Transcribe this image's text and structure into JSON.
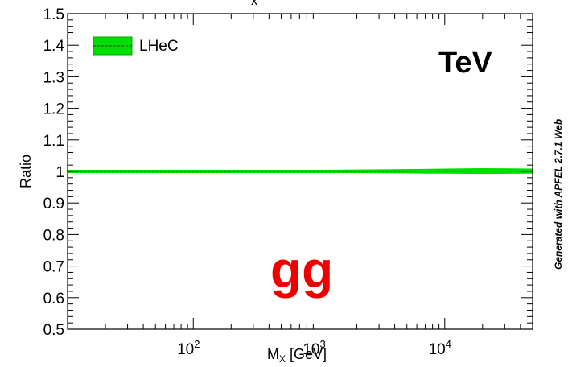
{
  "chart_data": {
    "type": "area",
    "title": "",
    "title_fragment": "x",
    "xlabel": "M_X [GeV]",
    "xlabel_main": "M",
    "xlabel_sub": "X",
    "xlabel_unit": "[GeV]",
    "ylabel": "Ratio",
    "xscale": "log",
    "xlim": [
      10,
      50000
    ],
    "ylim": [
      0.5,
      1.5
    ],
    "y_ticks": [
      "0.5",
      "0.6",
      "0.7",
      "0.8",
      "0.9",
      "1",
      "1.1",
      "1.2",
      "1.3",
      "1.4",
      "1.5"
    ],
    "x_ticks": [
      {
        "value": 100,
        "base": "10",
        "exp": "2"
      },
      {
        "value": 1000,
        "base": "10",
        "exp": "3"
      },
      {
        "value": 10000,
        "base": "10",
        "exp": "4"
      }
    ],
    "grid": false,
    "legend_position": "top-left",
    "series": [
      {
        "name": "LHeC",
        "color": "#00dd00",
        "line_color": "#333333",
        "x": [
          10,
          30,
          100,
          300,
          1000,
          2000,
          4000,
          7000,
          10000,
          20000,
          50000
        ],
        "central": [
          1.0,
          1.0,
          1.0,
          1.0,
          1.0,
          1.0,
          1.0,
          1.001,
          1.001,
          1.001,
          1.001
        ],
        "lower": [
          0.997,
          0.997,
          0.997,
          0.997,
          0.997,
          0.997,
          0.996,
          0.995,
          0.995,
          0.994,
          0.995
        ],
        "upper": [
          1.003,
          1.003,
          1.003,
          1.003,
          1.003,
          1.004,
          1.005,
          1.006,
          1.007,
          1.008,
          1.007
        ]
      }
    ],
    "annotations": {
      "energy": "TeV",
      "channel": "gg",
      "channel_color": "#ee0000",
      "watermark": "Generated with APFEL 2.7.1 Web"
    }
  }
}
